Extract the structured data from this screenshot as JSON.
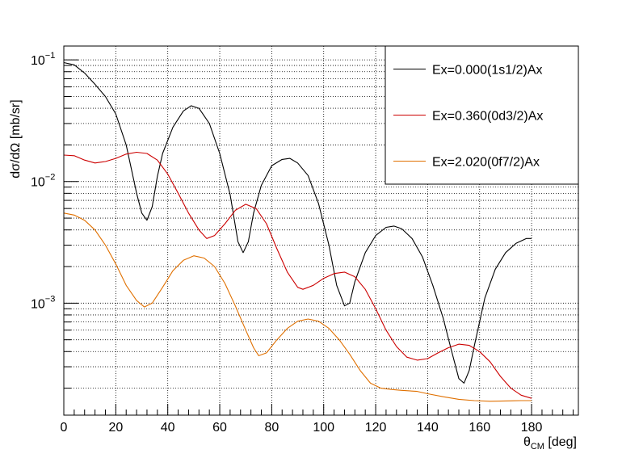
{
  "chart_data": {
    "type": "line",
    "title": "",
    "xlabel": {
      "main": "θ",
      "sub": "CM",
      "unit": " [deg]"
    },
    "ylabel": "dσ/dΩ [mb/sr]",
    "x_scale": "linear",
    "y_scale": "log",
    "xlim": [
      0,
      198
    ],
    "ylim": [
      0.00012,
      0.13
    ],
    "grid": true,
    "legend_position": "top-right",
    "x_ticks": [
      "0",
      "20",
      "40",
      "60",
      "80",
      "100",
      "120",
      "140",
      "160",
      "180"
    ],
    "y_ticks": [
      {
        "base": "10",
        "exp": "−3",
        "value": 0.001
      },
      {
        "base": "10",
        "exp": "−2",
        "value": 0.01
      },
      {
        "base": "10",
        "exp": "−1",
        "value": 0.1
      }
    ],
    "series": [
      {
        "name": "Ex=0.000(1s1/2)Ax",
        "color": "#000000",
        "points": [
          [
            0,
            0.095
          ],
          [
            4,
            0.091
          ],
          [
            8,
            0.078
          ],
          [
            12,
            0.063
          ],
          [
            16,
            0.05
          ],
          [
            20,
            0.036
          ],
          [
            24,
            0.02
          ],
          [
            28,
            0.008
          ],
          [
            30,
            0.0055
          ],
          [
            32,
            0.0048
          ],
          [
            34,
            0.0062
          ],
          [
            36,
            0.011
          ],
          [
            38,
            0.017
          ],
          [
            42,
            0.028
          ],
          [
            46,
            0.038
          ],
          [
            49,
            0.042
          ],
          [
            52,
            0.04
          ],
          [
            56,
            0.03
          ],
          [
            60,
            0.017
          ],
          [
            64,
            0.0078
          ],
          [
            67,
            0.0032
          ],
          [
            69,
            0.0026
          ],
          [
            71,
            0.0032
          ],
          [
            73,
            0.0055
          ],
          [
            76,
            0.0093
          ],
          [
            80,
            0.0135
          ],
          [
            84,
            0.0152
          ],
          [
            87,
            0.0155
          ],
          [
            90,
            0.0142
          ],
          [
            94,
            0.0112
          ],
          [
            98,
            0.0066
          ],
          [
            102,
            0.003
          ],
          [
            105,
            0.0014
          ],
          [
            108,
            0.00095
          ],
          [
            110,
            0.001
          ],
          [
            112,
            0.0015
          ],
          [
            116,
            0.0026
          ],
          [
            120,
            0.0036
          ],
          [
            124,
            0.0042
          ],
          [
            127,
            0.0043
          ],
          [
            130,
            0.0041
          ],
          [
            134,
            0.0034
          ],
          [
            138,
            0.0024
          ],
          [
            142,
            0.0014
          ],
          [
            146,
            0.00075
          ],
          [
            149,
            0.00042
          ],
          [
            152,
            0.00024
          ],
          [
            154,
            0.00022
          ],
          [
            156,
            0.00028
          ],
          [
            158,
            0.00045
          ],
          [
            162,
            0.0011
          ],
          [
            166,
            0.0019
          ],
          [
            170,
            0.0026
          ],
          [
            174,
            0.0031
          ],
          [
            178,
            0.0034
          ],
          [
            180,
            0.0034
          ]
        ]
      },
      {
        "name": "Ex=0.360(0d3/2)Ax",
        "color": "#cc0000",
        "points": [
          [
            0,
            0.0165
          ],
          [
            4,
            0.0163
          ],
          [
            8,
            0.015
          ],
          [
            12,
            0.0142
          ],
          [
            16,
            0.0146
          ],
          [
            20,
            0.0155
          ],
          [
            24,
            0.0168
          ],
          [
            28,
            0.0174
          ],
          [
            32,
            0.017
          ],
          [
            36,
            0.015
          ],
          [
            40,
            0.0115
          ],
          [
            44,
            0.008
          ],
          [
            48,
            0.0055
          ],
          [
            52,
            0.004
          ],
          [
            55,
            0.0034
          ],
          [
            58,
            0.0036
          ],
          [
            62,
            0.0045
          ],
          [
            66,
            0.0058
          ],
          [
            70,
            0.0065
          ],
          [
            74,
            0.006
          ],
          [
            78,
            0.0045
          ],
          [
            82,
            0.0028
          ],
          [
            86,
            0.0018
          ],
          [
            90,
            0.00135
          ],
          [
            92,
            0.0013
          ],
          [
            96,
            0.0014
          ],
          [
            100,
            0.0016
          ],
          [
            104,
            0.00175
          ],
          [
            108,
            0.0018
          ],
          [
            112,
            0.00165
          ],
          [
            116,
            0.0013
          ],
          [
            120,
            0.0009
          ],
          [
            124,
            0.0006
          ],
          [
            128,
            0.00044
          ],
          [
            132,
            0.00036
          ],
          [
            136,
            0.00034
          ],
          [
            140,
            0.00035
          ],
          [
            144,
            0.00039
          ],
          [
            148,
            0.00043
          ],
          [
            152,
            0.00046
          ],
          [
            156,
            0.00045
          ],
          [
            160,
            0.0004
          ],
          [
            164,
            0.00033
          ],
          [
            168,
            0.00025
          ],
          [
            172,
            0.0002
          ],
          [
            176,
            0.000175
          ],
          [
            180,
            0.000165
          ]
        ]
      },
      {
        "name": "Ex=2.020(0f7/2)Ax",
        "color": "#e07000",
        "points": [
          [
            0,
            0.0055
          ],
          [
            4,
            0.0053
          ],
          [
            8,
            0.0048
          ],
          [
            12,
            0.004
          ],
          [
            16,
            0.003
          ],
          [
            20,
            0.0021
          ],
          [
            24,
            0.0014
          ],
          [
            28,
            0.00105
          ],
          [
            31,
            0.00093
          ],
          [
            34,
            0.001
          ],
          [
            38,
            0.00135
          ],
          [
            42,
            0.00185
          ],
          [
            46,
            0.00225
          ],
          [
            50,
            0.00245
          ],
          [
            54,
            0.00235
          ],
          [
            58,
            0.002
          ],
          [
            62,
            0.00145
          ],
          [
            66,
            0.00095
          ],
          [
            70,
            0.0006
          ],
          [
            73,
            0.00043
          ],
          [
            75,
            0.00037
          ],
          [
            78,
            0.00039
          ],
          [
            82,
            0.0005
          ],
          [
            86,
            0.00062
          ],
          [
            90,
            0.00071
          ],
          [
            94,
            0.00074
          ],
          [
            98,
            0.00071
          ],
          [
            102,
            0.00062
          ],
          [
            106,
            0.0005
          ],
          [
            110,
            0.00038
          ],
          [
            114,
            0.00028
          ],
          [
            118,
            0.00022
          ],
          [
            122,
            0.0002
          ],
          [
            126,
            0.000195
          ],
          [
            130,
            0.000192
          ],
          [
            136,
            0.000188
          ],
          [
            140,
            0.00018
          ],
          [
            146,
            0.00017
          ],
          [
            152,
            0.000162
          ],
          [
            158,
            0.000158
          ],
          [
            164,
            0.000156
          ],
          [
            170,
            0.000157
          ],
          [
            176,
            0.000158
          ],
          [
            180,
            0.000158
          ]
        ]
      }
    ]
  }
}
